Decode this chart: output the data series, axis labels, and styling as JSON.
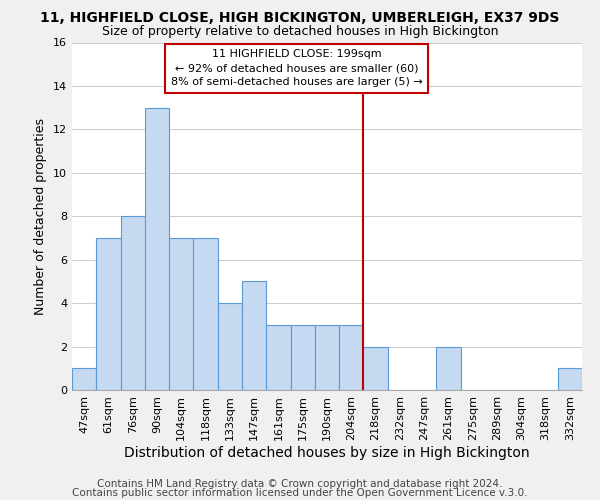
{
  "title": "11, HIGHFIELD CLOSE, HIGH BICKINGTON, UMBERLEIGH, EX37 9DS",
  "subtitle": "Size of property relative to detached houses in High Bickington",
  "xlabel": "Distribution of detached houses by size in High Bickington",
  "ylabel": "Number of detached properties",
  "categories": [
    "47sqm",
    "61sqm",
    "76sqm",
    "90sqm",
    "104sqm",
    "118sqm",
    "133sqm",
    "147sqm",
    "161sqm",
    "175sqm",
    "190sqm",
    "204sqm",
    "218sqm",
    "232sqm",
    "247sqm",
    "261sqm",
    "275sqm",
    "289sqm",
    "304sqm",
    "318sqm",
    "332sqm"
  ],
  "values": [
    1,
    7,
    8,
    13,
    7,
    7,
    4,
    5,
    3,
    3,
    3,
    3,
    2,
    0,
    0,
    2,
    0,
    0,
    0,
    0,
    1
  ],
  "bar_color": "#c5d9f0",
  "bar_edge_color": "#5b9bd5",
  "ylim": [
    0,
    16
  ],
  "yticks": [
    0,
    2,
    4,
    6,
    8,
    10,
    12,
    14,
    16
  ],
  "vline_color": "#c00000",
  "annotation_title": "11 HIGHFIELD CLOSE: 199sqm",
  "annotation_line1": "← 92% of detached houses are smaller (60)",
  "annotation_line2": "8% of semi-detached houses are larger (5) →",
  "footer_line1": "Contains HM Land Registry data © Crown copyright and database right 2024.",
  "footer_line2": "Contains public sector information licensed under the Open Government Licence v.3.0.",
  "background_color": "#f0f0f0",
  "plot_background_color": "#ffffff",
  "grid_color": "#cccccc",
  "title_fontsize": 10,
  "subtitle_fontsize": 9,
  "xlabel_fontsize": 10,
  "ylabel_fontsize": 9,
  "tick_fontsize": 8,
  "annotation_fontsize": 8,
  "footer_fontsize": 7.5
}
